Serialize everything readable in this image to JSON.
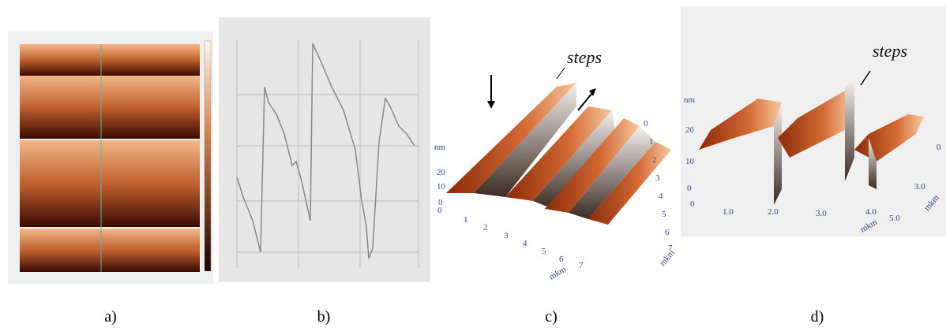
{
  "panels": [
    {
      "label": "a)"
    },
    {
      "label": "b)"
    },
    {
      "label": "c)",
      "annotation": "steps",
      "z_label": "nm",
      "z_ticks": [
        "20",
        "10",
        "0"
      ],
      "x_ticks": [
        "0",
        "1",
        "2",
        "3",
        "4",
        "5",
        "6",
        "7"
      ],
      "x_label": "mkm",
      "y_ticks": [
        "0",
        "1",
        "2",
        "3",
        "4",
        "5",
        "6",
        "7"
      ],
      "y_label": "mkm"
    },
    {
      "label": "d)",
      "annotation": "steps",
      "z_label": "nm",
      "z_ticks": [
        "20",
        "10",
        "0"
      ],
      "x_ticks": [
        "0",
        "1.0",
        "2.0",
        "3.0",
        "4.0",
        "5.0"
      ],
      "x_label": "mkm",
      "y_ticks": [
        "0",
        "3.0"
      ],
      "y_label": "mkm"
    }
  ]
}
